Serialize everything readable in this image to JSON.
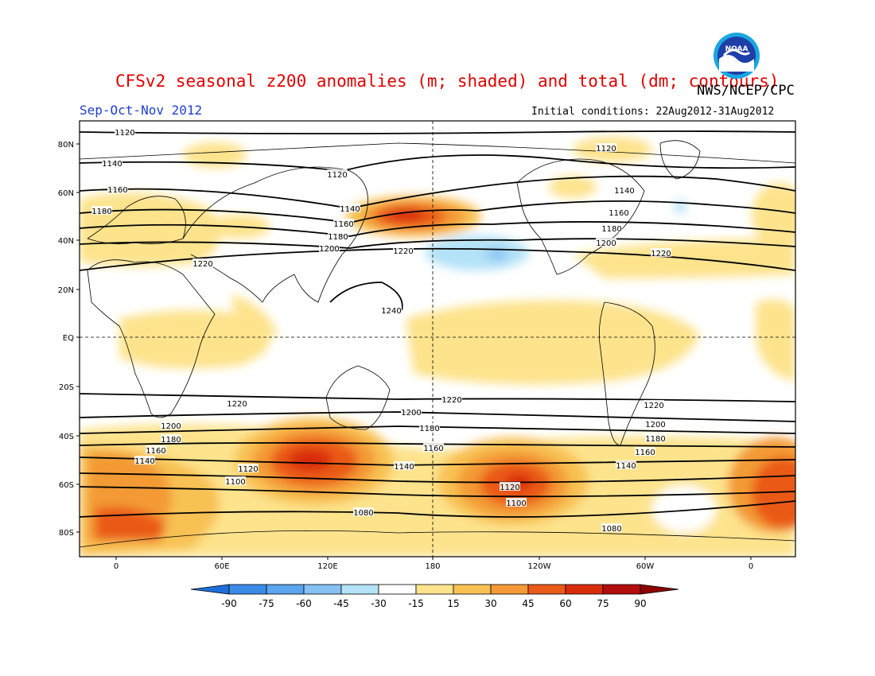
{
  "header": {
    "title": "CFSv2 seasonal z200 anomalies (m; shaded) and total (dm; contours)",
    "org": "NWS/NCEP/CPC",
    "season": "Sep-Oct-Nov 2012",
    "initial_conditions": "Initial conditions: 22Aug2012-31Aug2012",
    "logo_text": "NOAA"
  },
  "map": {
    "lat_labels": [
      "80N",
      "60N",
      "40N",
      "20N",
      "EQ",
      "20S",
      "40S",
      "60S",
      "80S"
    ],
    "lon_labels": [
      "0",
      "60E",
      "120E",
      "180",
      "120W",
      "60W",
      "0"
    ],
    "contour_labels": [
      "1080",
      "1100",
      "1120",
      "1140",
      "1160",
      "1180",
      "1200",
      "1220",
      "1240"
    ]
  },
  "colorbar": {
    "ticks": [
      "-90",
      "-75",
      "-60",
      "-45",
      "-30",
      "-15",
      "15",
      "30",
      "45",
      "60",
      "75",
      "90"
    ],
    "colors": [
      "#1e6fdc",
      "#3a8be6",
      "#5ba4ee",
      "#86c1f3",
      "#b4e2f7",
      "#ffffff",
      "#fde38c",
      "#f8c153",
      "#f39a36",
      "#ea5a17",
      "#d92c0b",
      "#b30e0e",
      "#8c0000"
    ]
  }
}
